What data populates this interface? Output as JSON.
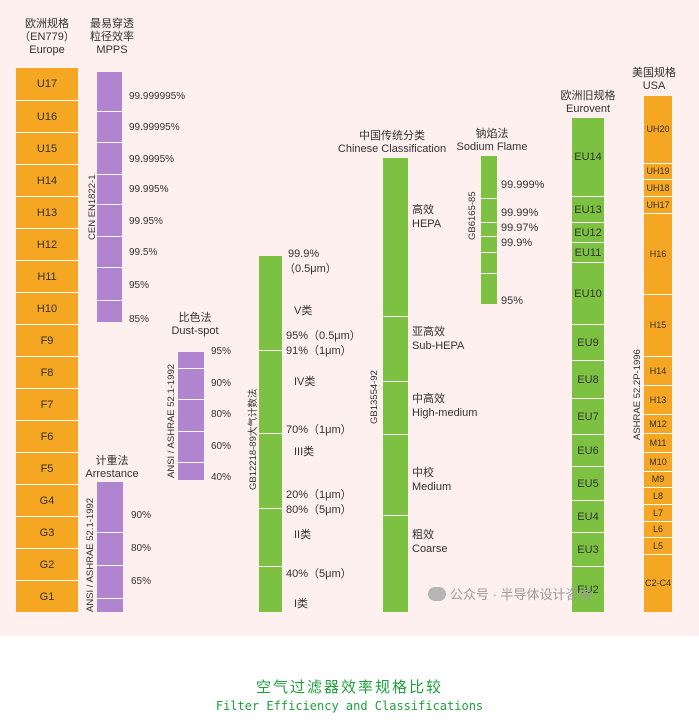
{
  "title_zh": "空气过滤器效率规格比较",
  "title_en": "Filter Efficiency and Classifications",
  "watermark": "公众号 · 半导体设计咨询",
  "europe": {
    "header_lines": [
      "欧洲规格",
      "（EN779）",
      "Europe"
    ],
    "classes": [
      "U17",
      "U16",
      "U15",
      "H14",
      "H13",
      "H12",
      "H11",
      "H10",
      "F9",
      "F8",
      "F7",
      "F6",
      "F5",
      "G4",
      "G3",
      "G2",
      "G1"
    ]
  },
  "mpps": {
    "header_lines": [
      "最易穿透",
      "粒径效率",
      "MPPS"
    ],
    "standard": "CEN EN1822-1",
    "values": [
      "99.999995%",
      "99.99995%",
      "99.9995%",
      "99.995%",
      "99.95%",
      "99.5%",
      "95%",
      "85%"
    ]
  },
  "dustspot": {
    "header_lines": [
      "比色法",
      "Dust-spot"
    ],
    "standard": "ANSI / ASHRAE 52.1-1992",
    "values": [
      "95%",
      "90%",
      "80%",
      "60%",
      "40%"
    ]
  },
  "arrestance": {
    "header_lines": [
      "计重法",
      "Arrestance"
    ],
    "standard": "ANSI / ASHRAE 52.1-1992",
    "values": [
      "90%",
      "80%",
      "65%"
    ]
  },
  "gb": {
    "standard": "GB12218-89大气计数法",
    "top_lines": [
      "99.9%",
      "（0.5μm）"
    ],
    "labels": [
      "V类",
      "95%（0.5μm）",
      "91%（1μm）",
      "IV类",
      "70%（1μm）",
      "III类",
      "20%（1μm）",
      "80%（5μm）",
      "II类",
      "40%（5μm）",
      "I类"
    ]
  },
  "chinese": {
    "header_lines": [
      "中国传统分类",
      "Chinese Classification"
    ],
    "standard": "GB13554-92",
    "classes": [
      {
        "zh": "高效",
        "en": "HEPA"
      },
      {
        "zh": "亚高效",
        "en": "Sub-HEPA"
      },
      {
        "zh": "中高效",
        "en": "High-medium"
      },
      {
        "zh": "中校",
        "en": "Medium"
      },
      {
        "zh": "粗效",
        "en": "Coarse"
      }
    ]
  },
  "sodium": {
    "header_lines": [
      "钠焰法",
      "Sodium Flame"
    ],
    "standard": "GB6165-85",
    "values": [
      "99.999%",
      "99.99%",
      "99.97%",
      "99.9%",
      "95%"
    ]
  },
  "eurovent": {
    "header_lines": [
      "欧洲旧规格",
      "Eurovent"
    ],
    "classes": [
      "EU14",
      "EU13",
      "EU12",
      "EU11",
      "EU10",
      "EU9",
      "EU8",
      "EU7",
      "EU6",
      "EU5",
      "EU4",
      "EU3",
      "EU2"
    ]
  },
  "usa": {
    "header_lines": [
      "美国规格",
      "USA"
    ],
    "standard": "ASHRAE 52.2P-1996",
    "classes": [
      "UH20",
      "UH19",
      "UH18",
      "UH17",
      "H16",
      "H15",
      "H14",
      "H13",
      "M12",
      "M11",
      "M10",
      "M9",
      "L8",
      "L7",
      "L6",
      "L5",
      "C2-C4"
    ]
  },
  "colors": {
    "orange": "#f5a623",
    "purple": "#b184cf",
    "green": "#7dc142",
    "title": "#1fa03c",
    "panel": "#fdf0ee"
  }
}
